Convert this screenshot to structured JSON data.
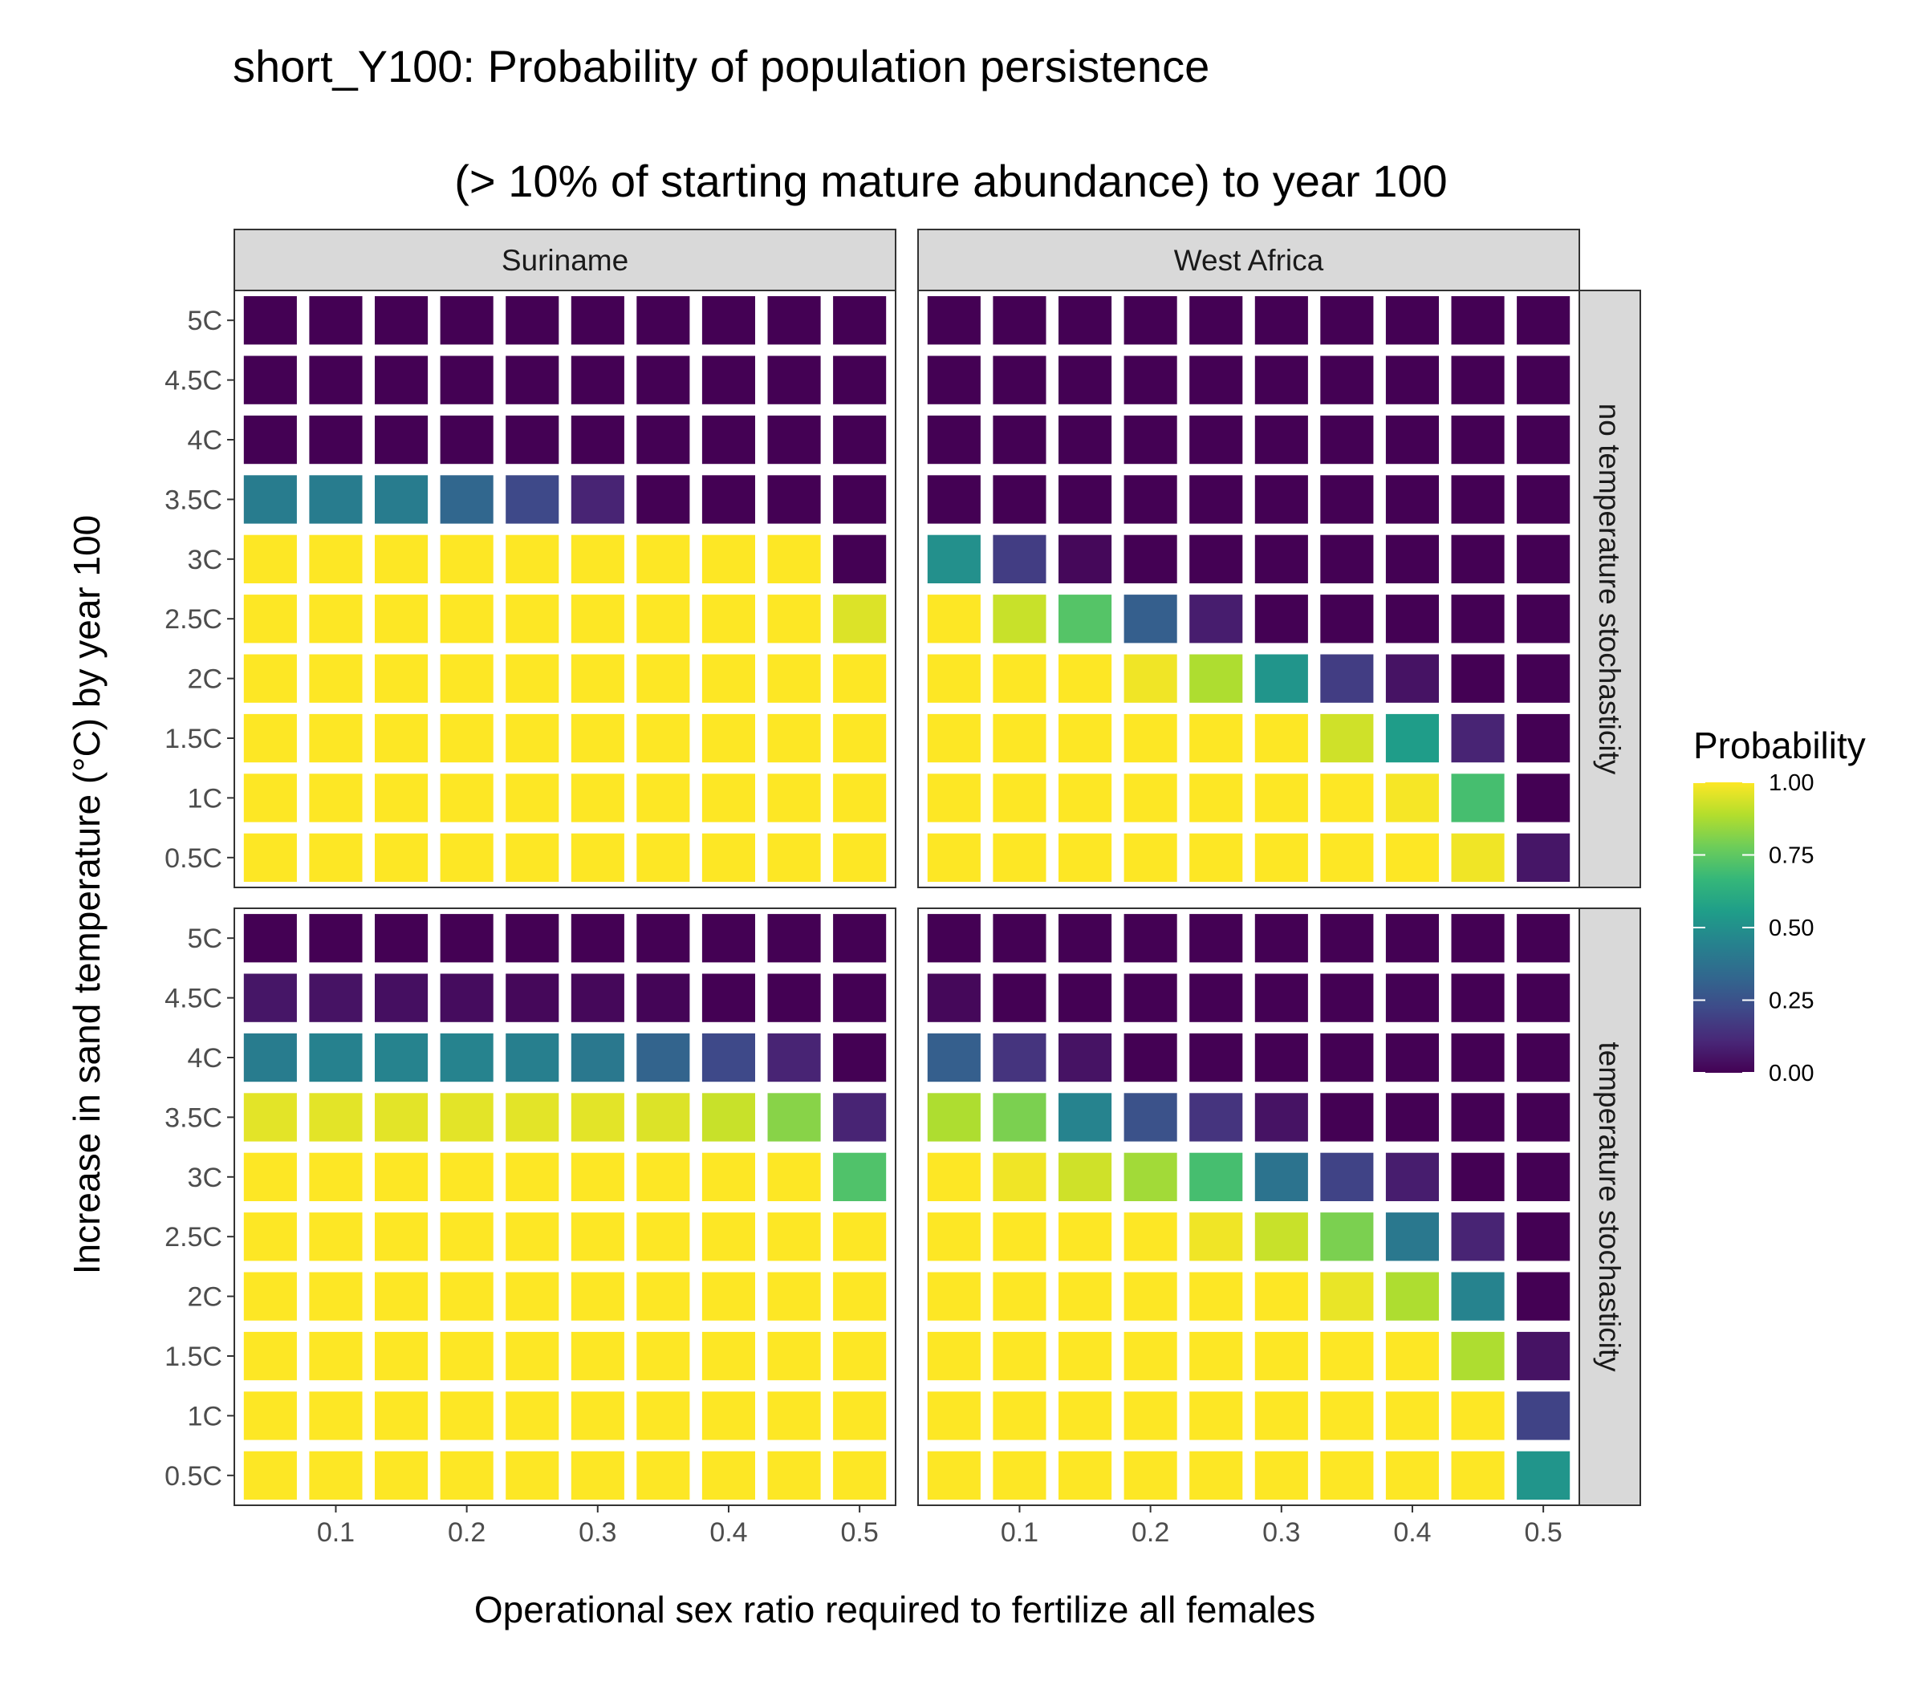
{
  "chart_data": {
    "type": "heatmap",
    "title_lines": [
      "short_Y100: Probability of population persistence",
      "(> 10% of starting mature abundance) to year 100"
    ],
    "xlabel": "Operational sex ratio required to fertilize all females",
    "ylabel": "Increase in sand temperature (°C) by year 100",
    "x": [
      0.05,
      0.1,
      0.15,
      0.2,
      0.25,
      0.3,
      0.35,
      0.4,
      0.45,
      0.5
    ],
    "x_ticks": [
      0.1,
      0.2,
      0.3,
      0.4,
      0.5
    ],
    "x_tick_labels": [
      "0.1",
      "0.2",
      "0.3",
      "0.4",
      "0.5"
    ],
    "xlim": [
      0.0225,
      0.5275
    ],
    "y_categories": [
      "0.5C",
      "1C",
      "1.5C",
      "2C",
      "2.5C",
      "3C",
      "3.5C",
      "4C",
      "4.5C",
      "5C"
    ],
    "facet_columns": [
      "Suriname",
      "West Africa"
    ],
    "facet_rows": [
      "no temperature stochasticity",
      "temperature stochasticity"
    ],
    "legend": {
      "title": "Probability",
      "placement": "right",
      "range": [
        0,
        1
      ],
      "breaks": [
        1.0,
        0.75,
        0.5,
        0.25,
        0.0
      ],
      "break_labels": [
        "1.00",
        "0.75",
        "0.50",
        "0.25",
        "0.00"
      ],
      "colormap": "viridis"
    },
    "colormap": [
      "#440154",
      "#482878",
      "#3E4A89",
      "#31688E",
      "#26828E",
      "#1F9E89",
      "#35B779",
      "#6DCD59",
      "#B4DE2C",
      "#FDE725"
    ],
    "panels": [
      {
        "column": "Suriname",
        "row": "no temperature stochasticity",
        "values": [
          [
            1,
            1,
            1,
            1,
            1,
            1,
            1,
            1,
            1,
            1
          ],
          [
            1,
            1,
            1,
            1,
            1,
            1,
            1,
            1,
            1,
            1
          ],
          [
            1,
            1,
            1,
            1,
            1,
            1,
            1,
            1,
            1,
            1
          ],
          [
            1,
            1,
            1,
            1,
            1,
            1,
            1,
            1,
            1,
            1
          ],
          [
            1,
            1,
            1,
            1,
            1,
            1,
            1,
            1,
            1,
            0.95
          ],
          [
            1,
            1,
            1,
            1,
            1,
            1,
            1,
            1,
            1,
            0
          ],
          [
            0.42,
            0.42,
            0.42,
            0.33,
            0.22,
            0.1,
            0,
            0,
            0,
            0
          ],
          [
            0,
            0,
            0,
            0,
            0,
            0,
            0,
            0,
            0,
            0
          ],
          [
            0,
            0,
            0,
            0,
            0,
            0,
            0,
            0,
            0,
            0
          ],
          [
            0,
            0,
            0,
            0,
            0,
            0,
            0,
            0,
            0,
            0
          ]
        ]
      },
      {
        "column": "West Africa",
        "row": "no temperature stochasticity",
        "values": [
          [
            1,
            1,
            1,
            1,
            1,
            1,
            1,
            1,
            0.98,
            0.06
          ],
          [
            1,
            1,
            1,
            1,
            1,
            1,
            1,
            0.99,
            0.7,
            0
          ],
          [
            1,
            1,
            1,
            1,
            1,
            1,
            0.93,
            0.55,
            0.1,
            0
          ],
          [
            1,
            1,
            1,
            0.98,
            0.88,
            0.52,
            0.18,
            0.05,
            0,
            0
          ],
          [
            1,
            0.92,
            0.73,
            0.3,
            0.08,
            0,
            0,
            0,
            0,
            0
          ],
          [
            0.5,
            0.18,
            0.02,
            0,
            0,
            0,
            0,
            0,
            0,
            0
          ],
          [
            0,
            0,
            0,
            0,
            0,
            0,
            0,
            0,
            0,
            0
          ],
          [
            0,
            0,
            0,
            0,
            0,
            0,
            0,
            0,
            0,
            0
          ],
          [
            0,
            0,
            0,
            0,
            0,
            0,
            0,
            0,
            0,
            0
          ],
          [
            0,
            0,
            0,
            0,
            0,
            0,
            0,
            0,
            0,
            0
          ]
        ]
      },
      {
        "column": "Suriname",
        "row": "temperature stochasticity",
        "values": [
          [
            1,
            1,
            1,
            1,
            1,
            1,
            1,
            1,
            1,
            1
          ],
          [
            1,
            1,
            1,
            1,
            1,
            1,
            1,
            1,
            1,
            1
          ],
          [
            1,
            1,
            1,
            1,
            1,
            1,
            1,
            1,
            1,
            1
          ],
          [
            1,
            1,
            1,
            1,
            1,
            1,
            1,
            1,
            1,
            1
          ],
          [
            1,
            1,
            1,
            1,
            1,
            1,
            1,
            1,
            1,
            1
          ],
          [
            1,
            1,
            1,
            1,
            1,
            1,
            1,
            1,
            1,
            0.72
          ],
          [
            0.96,
            0.96,
            0.96,
            0.96,
            0.96,
            0.96,
            0.95,
            0.92,
            0.82,
            0.1
          ],
          [
            0.42,
            0.44,
            0.45,
            0.45,
            0.43,
            0.4,
            0.32,
            0.22,
            0.1,
            0
          ],
          [
            0.06,
            0.05,
            0.04,
            0.03,
            0.02,
            0.02,
            0.01,
            0,
            0,
            0
          ],
          [
            0,
            0,
            0,
            0,
            0,
            0,
            0,
            0,
            0,
            0
          ]
        ]
      },
      {
        "column": "West Africa",
        "row": "temperature stochasticity",
        "values": [
          [
            1,
            1,
            1,
            1,
            1,
            1,
            1,
            1,
            1,
            0.52
          ],
          [
            1,
            1,
            1,
            1,
            1,
            1,
            1,
            1,
            1,
            0.2
          ],
          [
            1,
            1,
            1,
            1,
            1,
            1,
            1,
            1,
            0.88,
            0.05
          ],
          [
            1,
            1,
            1,
            1,
            1,
            1,
            0.97,
            0.88,
            0.45,
            0
          ],
          [
            1,
            1,
            1,
            1,
            0.98,
            0.92,
            0.8,
            0.4,
            0.1,
            0
          ],
          [
            1,
            0.98,
            0.93,
            0.86,
            0.7,
            0.38,
            0.2,
            0.08,
            0,
            0
          ],
          [
            0.88,
            0.8,
            0.45,
            0.25,
            0.15,
            0.05,
            0,
            0,
            0,
            0
          ],
          [
            0.3,
            0.15,
            0.05,
            0,
            0,
            0,
            0,
            0,
            0,
            0
          ],
          [
            0.02,
            0,
            0,
            0,
            0,
            0,
            0,
            0,
            0,
            0
          ],
          [
            0,
            0,
            0,
            0,
            0,
            0,
            0,
            0,
            0,
            0
          ]
        ]
      }
    ]
  }
}
